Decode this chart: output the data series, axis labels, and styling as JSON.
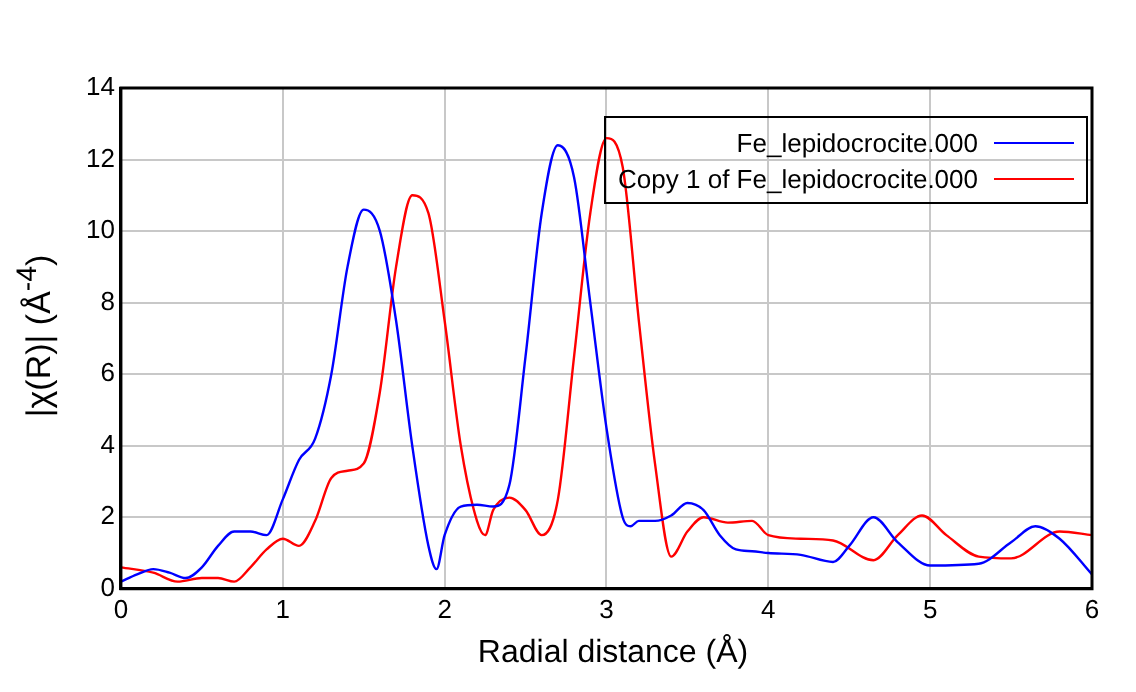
{
  "chart_data": {
    "type": "line",
    "xlabel": "Radial distance    (Å)",
    "ylabel": "|χ(R)|    (Å$^{-4}$)",
    "xlim": [
      0,
      6
    ],
    "xticks": [
      0,
      1,
      2,
      3,
      4,
      5,
      6
    ],
    "ylim": [
      0,
      14
    ],
    "yticks": [
      0,
      2,
      4,
      6,
      8,
      10,
      12,
      14
    ],
    "grid": true,
    "legend": "top right",
    "marker": "none",
    "line_style": "solid",
    "series": [
      {
        "name": "Fe_lepidocrocite.000",
        "color": "#0000ff",
        "x": [
          0,
          0.1,
          0.2,
          0.3,
          0.4,
          0.5,
          0.6,
          0.7,
          0.8,
          0.9,
          1.0,
          1.1,
          1.2,
          1.3,
          1.4,
          1.5,
          1.6,
          1.7,
          1.8,
          1.9,
          1.95,
          2.0,
          2.1,
          2.2,
          2.3,
          2.4,
          2.5,
          2.6,
          2.7,
          2.8,
          2.9,
          3.0,
          3.1,
          3.15,
          3.2,
          3.3,
          3.4,
          3.5,
          3.6,
          3.7,
          3.8,
          3.9,
          4.0,
          4.2,
          4.4,
          4.5,
          4.65,
          4.8,
          5.0,
          5.3,
          5.5,
          5.65,
          5.8,
          6.0
        ],
        "values": [
          0.2,
          0.4,
          0.55,
          0.45,
          0.3,
          0.6,
          1.2,
          1.6,
          1.6,
          1.5,
          2.5,
          3.6,
          4.2,
          6.0,
          9.0,
          10.6,
          10.0,
          7.5,
          4.0,
          1.2,
          0.55,
          1.5,
          2.3,
          2.35,
          2.3,
          2.9,
          6.5,
          10.5,
          12.4,
          11.5,
          8.0,
          4.5,
          2.0,
          1.75,
          1.9,
          1.9,
          2.05,
          2.4,
          2.2,
          1.5,
          1.1,
          1.05,
          1.0,
          0.95,
          0.75,
          1.2,
          2.0,
          1.3,
          0.65,
          0.7,
          1.3,
          1.75,
          1.4,
          0.4
        ]
      },
      {
        "name": "Copy 1 of Fe_lepidocrocite.000",
        "color": "#ff0000",
        "x": [
          0,
          0.2,
          0.35,
          0.5,
          0.6,
          0.7,
          0.8,
          0.9,
          1.0,
          1.1,
          1.2,
          1.3,
          1.4,
          1.5,
          1.6,
          1.7,
          1.8,
          1.9,
          2.0,
          2.1,
          2.2,
          2.25,
          2.3,
          2.4,
          2.5,
          2.6,
          2.7,
          2.8,
          2.9,
          3.0,
          3.1,
          3.2,
          3.3,
          3.4,
          3.5,
          3.6,
          3.75,
          3.9,
          4.0,
          4.2,
          4.4,
          4.65,
          4.8,
          4.95,
          5.1,
          5.3,
          5.5,
          5.8,
          6.0
        ],
        "values": [
          0.6,
          0.45,
          0.2,
          0.3,
          0.3,
          0.2,
          0.6,
          1.1,
          1.4,
          1.2,
          1.9,
          3.1,
          3.3,
          3.5,
          5.5,
          9.0,
          11.0,
          10.5,
          7.5,
          4.0,
          1.9,
          1.5,
          2.2,
          2.55,
          2.2,
          1.5,
          2.5,
          6.5,
          10.5,
          12.6,
          11.8,
          7.5,
          3.5,
          0.9,
          1.6,
          2.0,
          1.85,
          1.9,
          1.5,
          1.4,
          1.35,
          0.8,
          1.5,
          2.05,
          1.5,
          0.9,
          0.85,
          1.6,
          1.5
        ]
      }
    ]
  }
}
